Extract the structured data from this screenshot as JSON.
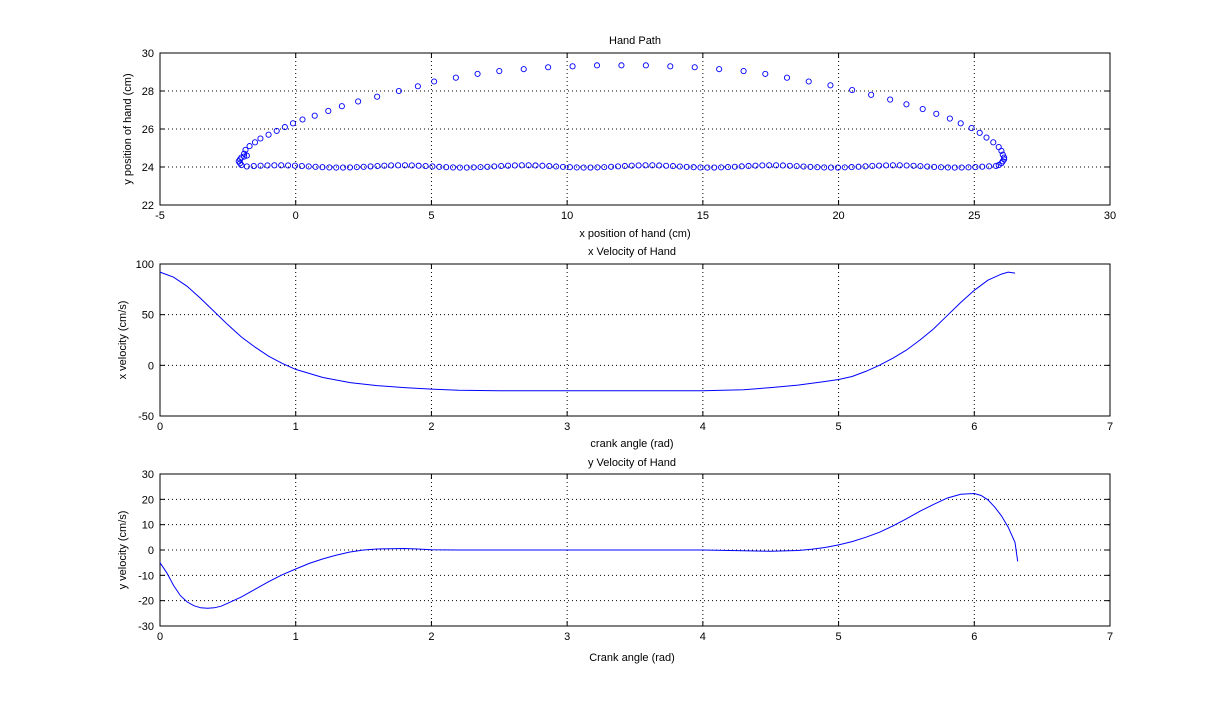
{
  "chart_data": [
    {
      "type": "scatter",
      "title": "Hand Path",
      "xlabel": "x position of hand (cm)",
      "ylabel": "y position of hand (cm)",
      "xlim": [
        -5,
        30
      ],
      "ylim": [
        22,
        30
      ],
      "xticks": [
        -5,
        0,
        5,
        10,
        15,
        20,
        25,
        30
      ],
      "yticks": [
        22,
        24,
        26,
        28,
        30
      ],
      "xtick_labels": [
        "-5",
        "0",
        "5",
        "10",
        "15",
        "20",
        "25",
        "30"
      ],
      "ytick_labels": [
        "22",
        "24",
        "26",
        "28",
        "30"
      ],
      "grid": true,
      "marker": "circle-open",
      "color": "#0000ff",
      "upper_path": {
        "x": [
          -1.9,
          -1.85,
          -1.7,
          -1.5,
          -1.3,
          -1.0,
          -0.7,
          -0.4,
          -0.1,
          0.25,
          0.7,
          1.2,
          1.7,
          2.3,
          3.0,
          3.8,
          4.5,
          5.1,
          5.9,
          6.7,
          7.5,
          8.4,
          9.3,
          10.2,
          11.1,
          12.0,
          12.9,
          13.8,
          14.7,
          15.6,
          16.5,
          17.3,
          18.1,
          18.9,
          19.7,
          20.5,
          21.2,
          21.9,
          22.5,
          23.1,
          23.6,
          24.1,
          24.5,
          24.9,
          25.2,
          25.45,
          25.7,
          25.9
        ],
        "y": [
          24.7,
          24.9,
          25.1,
          25.3,
          25.5,
          25.7,
          25.9,
          26.1,
          26.3,
          26.5,
          26.7,
          26.95,
          27.2,
          27.45,
          27.7,
          28.0,
          28.25,
          28.5,
          28.7,
          28.9,
          29.05,
          29.15,
          29.25,
          29.3,
          29.35,
          29.35,
          29.35,
          29.3,
          29.25,
          29.15,
          29.05,
          28.9,
          28.7,
          28.5,
          28.3,
          28.05,
          27.8,
          27.55,
          27.3,
          27.05,
          26.8,
          26.55,
          26.3,
          26.05,
          25.8,
          25.55,
          25.3,
          25.05
        ]
      },
      "turn_path": {
        "x": [
          26.0,
          26.05,
          26.1,
          26.1,
          26.05,
          26.0,
          25.9
        ],
        "y": [
          24.85,
          24.65,
          24.5,
          24.4,
          24.3,
          24.2,
          24.1
        ],
        "x_left": [
          -2.0,
          -2.05,
          -2.1,
          -2.05,
          -2.0,
          -1.9,
          -1.8
        ],
        "y_left": [
          24.1,
          24.2,
          24.3,
          24.4,
          24.5,
          24.55,
          24.6
        ]
      },
      "lower_path": {
        "x_start": -1.8,
        "x_end": 25.8,
        "count": 110,
        "y_mean": 24.03,
        "y_wiggle": 0.06
      }
    },
    {
      "type": "line",
      "title": "x Velocity of Hand",
      "xlabel": "crank angle (rad)",
      "ylabel": "x velocity (cm/s)",
      "xlim": [
        0,
        7
      ],
      "ylim": [
        -50,
        100
      ],
      "xticks": [
        0,
        1,
        2,
        3,
        4,
        5,
        6,
        7
      ],
      "yticks": [
        -50,
        0,
        50,
        100
      ],
      "xtick_labels": [
        "0",
        "1",
        "2",
        "3",
        "4",
        "5",
        "6",
        "7"
      ],
      "ytick_labels": [
        "-50",
        "0",
        "50",
        "100"
      ],
      "grid": true,
      "color": "#0000ff",
      "x": [
        0,
        0.1,
        0.2,
        0.3,
        0.4,
        0.5,
        0.6,
        0.7,
        0.8,
        0.9,
        1.0,
        1.2,
        1.4,
        1.6,
        1.8,
        2.0,
        2.2,
        2.5,
        3.0,
        3.5,
        4.0,
        4.3,
        4.5,
        4.7,
        4.9,
        5.0,
        5.1,
        5.2,
        5.3,
        5.4,
        5.5,
        5.6,
        5.7,
        5.8,
        5.9,
        6.0,
        6.1,
        6.2,
        6.25,
        6.3
      ],
      "y": [
        92,
        87,
        78,
        66,
        53,
        40,
        28,
        18,
        9,
        2,
        -4,
        -12,
        -17,
        -20,
        -22,
        -23.5,
        -24.5,
        -25,
        -25,
        -25,
        -25,
        -24,
        -22,
        -19.5,
        -16,
        -14,
        -11,
        -6,
        0,
        7,
        15,
        25,
        36,
        49,
        62,
        74,
        84,
        90,
        92,
        91
      ]
    },
    {
      "type": "line",
      "title": "y Velocity of Hand",
      "xlabel": "Crank angle (rad)",
      "ylabel": "y velocity (cm/s)",
      "xlim": [
        0,
        7
      ],
      "ylim": [
        -30,
        30
      ],
      "xticks": [
        0,
        1,
        2,
        3,
        4,
        5,
        6,
        7
      ],
      "yticks": [
        -30,
        -20,
        -10,
        0,
        10,
        20,
        30
      ],
      "xtick_labels": [
        "0",
        "1",
        "2",
        "3",
        "4",
        "5",
        "6",
        "7"
      ],
      "ytick_labels": [
        "-30",
        "-20",
        "-10",
        "0",
        "10",
        "20",
        "30"
      ],
      "grid": true,
      "color": "#0000ff",
      "x": [
        0,
        0.05,
        0.1,
        0.15,
        0.2,
        0.25,
        0.3,
        0.35,
        0.4,
        0.45,
        0.5,
        0.6,
        0.7,
        0.8,
        0.9,
        1.0,
        1.1,
        1.2,
        1.3,
        1.4,
        1.5,
        1.6,
        1.7,
        1.8,
        1.9,
        2.0,
        2.2,
        2.5,
        3.0,
        3.5,
        4.0,
        4.3,
        4.5,
        4.7,
        4.8,
        4.9,
        5.0,
        5.1,
        5.2,
        5.3,
        5.4,
        5.5,
        5.6,
        5.7,
        5.8,
        5.9,
        6.0,
        6.05,
        6.1,
        6.15,
        6.2,
        6.25,
        6.3,
        6.32
      ],
      "y": [
        -5,
        -9,
        -14,
        -18,
        -20.5,
        -22,
        -22.8,
        -23,
        -22.8,
        -22.2,
        -21,
        -18.5,
        -15.5,
        -12.5,
        -9.8,
        -7.5,
        -5.3,
        -3.5,
        -2,
        -0.8,
        0,
        0.4,
        0.5,
        0.6,
        0.4,
        0.1,
        0,
        0,
        0,
        0,
        0,
        -0.3,
        -0.5,
        -0.2,
        0.3,
        1.0,
        2.0,
        3.3,
        5.0,
        7.0,
        9.5,
        12.3,
        15.3,
        18.0,
        20.5,
        22.0,
        22.3,
        21.5,
        19.8,
        17.0,
        13.5,
        9.0,
        3.0,
        -4.5
      ]
    }
  ]
}
